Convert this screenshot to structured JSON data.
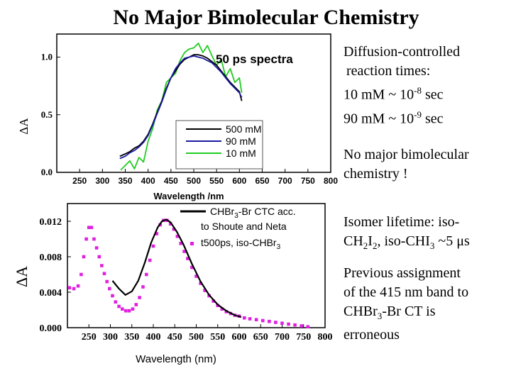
{
  "slide": {
    "title": "No Major Bimolecular Chemistry"
  },
  "notes": {
    "diffusion": {
      "l1": "Diffusion-controlled",
      "l2": "reaction times:",
      "l3a": "10 mM ~ 10",
      "l3b": "-8",
      "l3c": " sec",
      "l4a": "90 mM ~ 10",
      "l4b": "-9",
      "l4c": " sec"
    },
    "nochem": {
      "l1": "No major bimolecular",
      "l2": "chemistry !"
    },
    "lifetime": {
      "l1": "Isomer lifetime: iso-",
      "l2a": "CH",
      "l2b": "2",
      "l2c": "I",
      "l2d": "2",
      "l2e": ", iso-CHI",
      "l2f": "3",
      "l2g": " ~5 ",
      "l2h": "μ",
      "l2i": "s"
    },
    "previous": {
      "l1": "Previous assignment",
      "l2": "of the 415 nm band to",
      "l3a": "CHBr",
      "l3b": "3",
      "l3c": "-Br CT is",
      "l4": "erroneous"
    }
  },
  "chart_data": [
    {
      "type": "line",
      "title": "50 ps spectra",
      "xlabel": "Wavelength /nm",
      "ylabel": "ΔA",
      "xlim": [
        200,
        800
      ],
      "ylim": [
        0,
        1.2
      ],
      "x_ticks": [
        "250",
        "300",
        "350",
        "400",
        "450",
        "500",
        "550",
        "600",
        "650",
        "700",
        "750",
        "800"
      ],
      "y_ticks": [
        "0.0",
        "0.5",
        "1.0"
      ],
      "legend_position": "center-right",
      "series": [
        {
          "name": "500 mM",
          "color": "#000000",
          "x": [
            338,
            350,
            360,
            370,
            380,
            390,
            400,
            410,
            420,
            430,
            440,
            450,
            460,
            470,
            480,
            490,
            500,
            510,
            520,
            530,
            540,
            550,
            560,
            570,
            580,
            590,
            600,
            605
          ],
          "y": [
            0.14,
            0.16,
            0.18,
            0.21,
            0.23,
            0.27,
            0.33,
            0.42,
            0.52,
            0.62,
            0.73,
            0.82,
            0.88,
            0.94,
            0.98,
            1.0,
            1.02,
            1.02,
            1.01,
            0.99,
            0.96,
            0.93,
            0.88,
            0.83,
            0.78,
            0.74,
            0.7,
            0.62
          ]
        },
        {
          "name": "90 mM",
          "color": "#1a1aa0",
          "x": [
            338,
            350,
            360,
            370,
            380,
            390,
            400,
            410,
            420,
            430,
            440,
            450,
            460,
            470,
            480,
            490,
            500,
            510,
            520,
            530,
            540,
            550,
            560,
            570,
            580,
            590,
            600,
            605
          ],
          "y": [
            0.12,
            0.14,
            0.17,
            0.19,
            0.22,
            0.26,
            0.32,
            0.41,
            0.51,
            0.61,
            0.72,
            0.82,
            0.9,
            0.95,
            0.99,
            1.0,
            1.01,
            1.0,
            0.99,
            0.97,
            0.95,
            0.91,
            0.87,
            0.82,
            0.77,
            0.73,
            0.69,
            0.65
          ]
        },
        {
          "name": "10 mM",
          "color": "#22cc22",
          "x": [
            340,
            350,
            360,
            370,
            380,
            390,
            400,
            410,
            420,
            430,
            440,
            450,
            460,
            470,
            480,
            490,
            500,
            510,
            520,
            530,
            540,
            550,
            560,
            570,
            580,
            590,
            600,
            605
          ],
          "y": [
            0.02,
            0.06,
            0.1,
            0.03,
            0.13,
            0.09,
            0.27,
            0.38,
            0.54,
            0.62,
            0.78,
            0.82,
            0.86,
            0.97,
            1.04,
            1.07,
            1.08,
            1.12,
            1.04,
            1.1,
            1.01,
            0.93,
            0.98,
            0.83,
            0.9,
            0.78,
            0.82,
            0.69
          ]
        }
      ]
    },
    {
      "type": "scatter",
      "title": "",
      "xlabel": "Wavelength (nm)",
      "ylabel": "ΔA",
      "xlim": [
        200,
        800
      ],
      "ylim": [
        0,
        0.014
      ],
      "x_ticks": [
        "250",
        "300",
        "350",
        "400",
        "450",
        "500",
        "550",
        "600",
        "650",
        "700",
        "750",
        "800"
      ],
      "y_ticks": [
        "0.000",
        "0.004",
        "0.008",
        "0.012"
      ],
      "legend_position": "top-right",
      "series": [
        {
          "name": "CHBr3-Br CTC acc. to Shoute and Neta",
          "name_parts": [
            "CHBr",
            "3",
            "-Br CTC acc.",
            "to Shoute and Neta"
          ],
          "style": "line",
          "color": "#000000",
          "x": [
            305,
            320,
            335,
            350,
            365,
            380,
            395,
            410,
            420,
            430,
            440,
            455,
            470,
            490,
            510,
            530,
            550,
            570,
            590,
            605
          ],
          "y": [
            0.0053,
            0.0044,
            0.0037,
            0.0041,
            0.0053,
            0.0073,
            0.0096,
            0.0113,
            0.012,
            0.0122,
            0.0119,
            0.0108,
            0.0094,
            0.0072,
            0.0052,
            0.0037,
            0.0026,
            0.0019,
            0.0014,
            0.0012
          ]
        },
        {
          "name": "t500ps, iso-CHBr3",
          "name_parts": [
            "t500ps, iso-CHBr",
            "3"
          ],
          "style": "markers",
          "color": "#e020e0",
          "x": [
            205,
            215,
            225,
            232,
            238,
            244,
            250,
            256,
            262,
            268,
            274,
            280,
            286,
            292,
            298,
            305,
            312,
            320,
            328,
            336,
            344,
            352,
            360,
            368,
            376,
            384,
            392,
            400,
            408,
            416,
            424,
            432,
            440,
            448,
            456,
            464,
            472,
            480,
            490,
            500,
            510,
            520,
            530,
            540,
            550,
            560,
            570,
            580,
            590,
            600,
            612,
            625,
            640,
            655,
            670,
            685,
            700,
            715,
            730,
            745,
            760
          ],
          "y": [
            0.0045,
            0.0044,
            0.0047,
            0.006,
            0.008,
            0.01,
            0.0113,
            0.0113,
            0.01,
            0.009,
            0.008,
            0.007,
            0.0061,
            0.0052,
            0.0044,
            0.0036,
            0.0029,
            0.0024,
            0.0021,
            0.0019,
            0.0019,
            0.0021,
            0.0026,
            0.0034,
            0.0046,
            0.006,
            0.0076,
            0.0092,
            0.0106,
            0.0116,
            0.0121,
            0.0121,
            0.0117,
            0.0111,
            0.0103,
            0.0095,
            0.0086,
            0.0078,
            0.0068,
            0.0058,
            0.005,
            0.0042,
            0.0036,
            0.003,
            0.0025,
            0.0021,
            0.0018,
            0.0016,
            0.0014,
            0.0013,
            0.0011,
            0.001,
            0.0009,
            0.0008,
            0.0007,
            0.0006,
            0.0005,
            0.0004,
            0.0003,
            0.0002,
            0.0001
          ]
        }
      ]
    }
  ]
}
